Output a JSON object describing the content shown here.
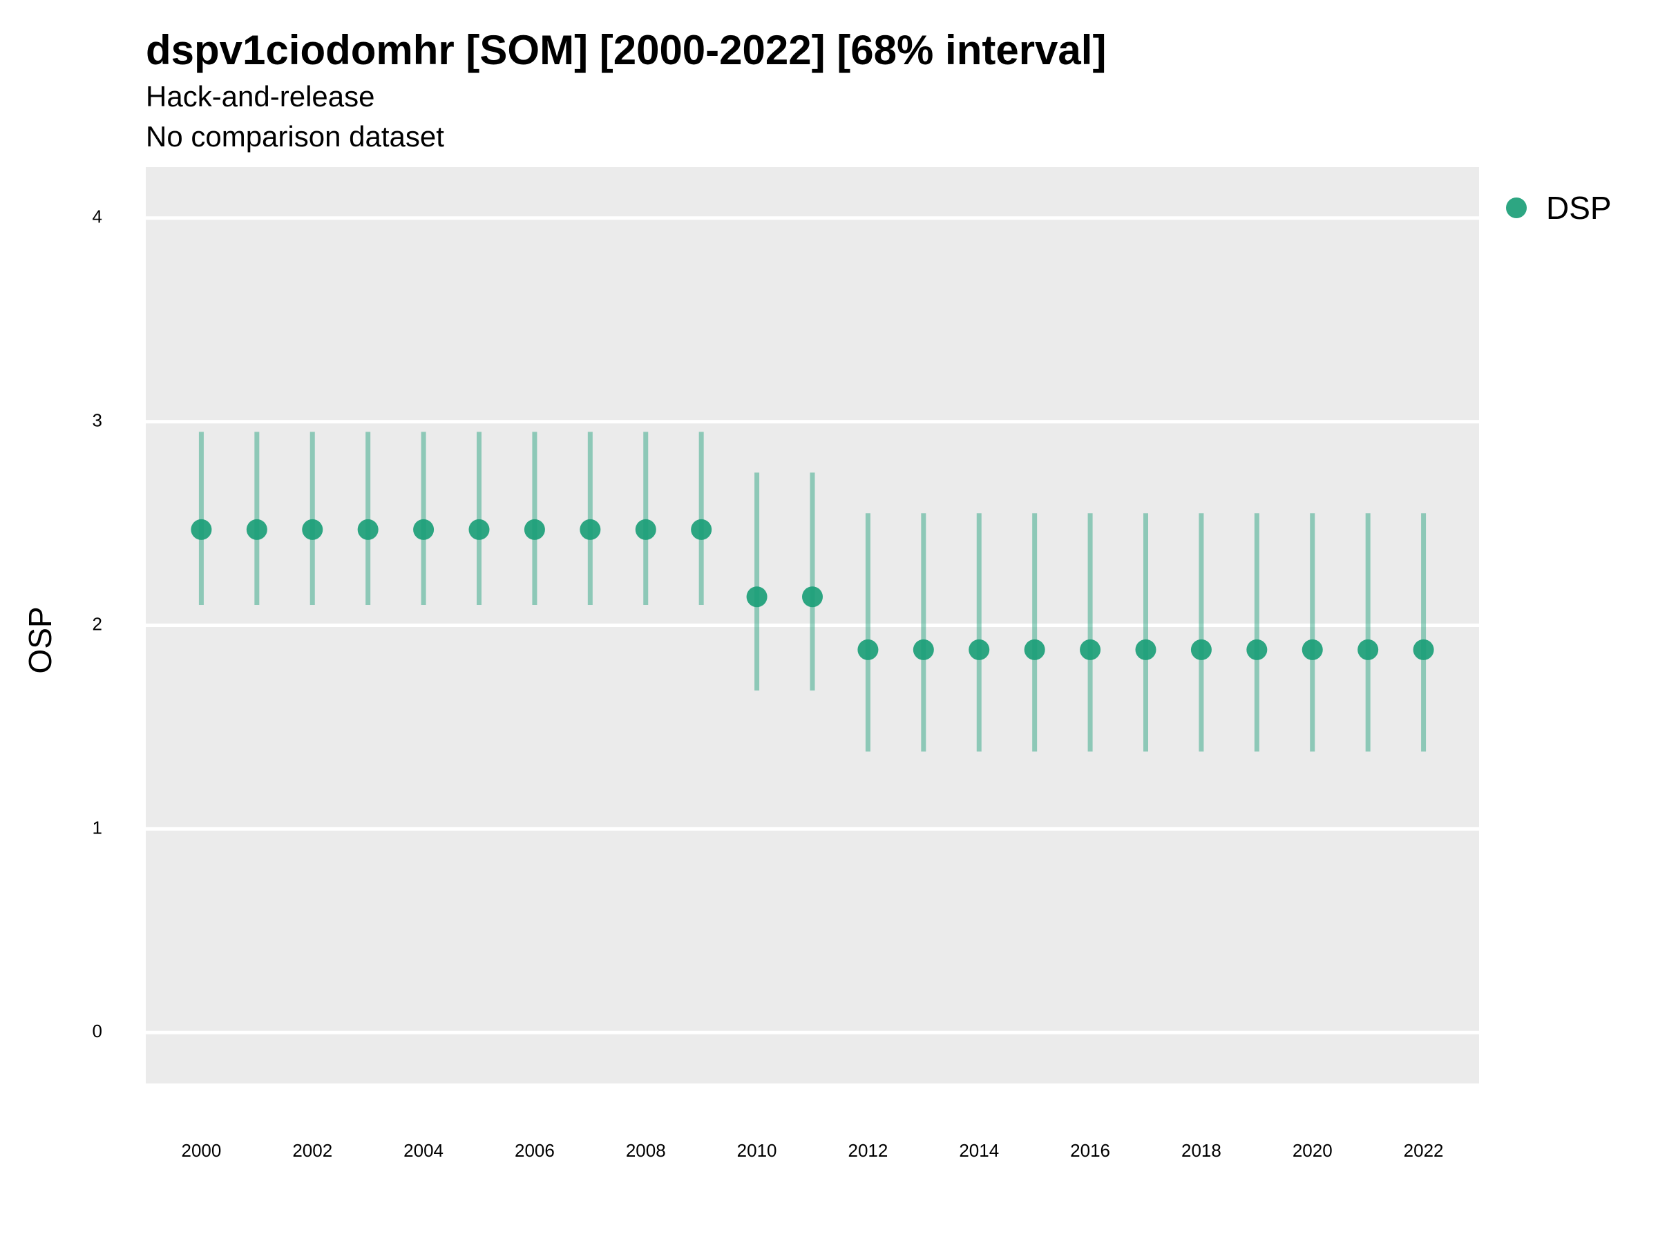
{
  "chart_data": {
    "type": "scatter",
    "title": "dspv1ciodomhr [SOM] [2000-2022] [68% interval]",
    "subtitle": [
      "Hack-and-release",
      "No comparison dataset"
    ],
    "xlabel": "",
    "ylabel": "OSP",
    "xlim": [
      1999,
      2023
    ],
    "ylim": [
      -0.25,
      4.25
    ],
    "x_ticks": [
      2000,
      2002,
      2004,
      2006,
      2008,
      2010,
      2012,
      2014,
      2016,
      2018,
      2020,
      2022
    ],
    "y_ticks": [
      0,
      1,
      2,
      3,
      4
    ],
    "grid": true,
    "legend": "right",
    "series": [
      {
        "name": "DSP",
        "color": "#1b9e77",
        "x": [
          2000,
          2001,
          2002,
          2003,
          2004,
          2005,
          2006,
          2007,
          2008,
          2009,
          2010,
          2011,
          2012,
          2013,
          2014,
          2015,
          2016,
          2017,
          2018,
          2019,
          2020,
          2021,
          2022
        ],
        "y": [
          2.47,
          2.47,
          2.47,
          2.47,
          2.47,
          2.47,
          2.47,
          2.47,
          2.47,
          2.47,
          2.14,
          2.14,
          1.88,
          1.88,
          1.88,
          1.88,
          1.88,
          1.88,
          1.88,
          1.88,
          1.88,
          1.88,
          1.88
        ],
        "lower": [
          2.1,
          2.1,
          2.1,
          2.1,
          2.1,
          2.1,
          2.1,
          2.1,
          2.1,
          2.1,
          1.68,
          1.68,
          1.38,
          1.38,
          1.38,
          1.38,
          1.38,
          1.38,
          1.38,
          1.38,
          1.38,
          1.38,
          1.38
        ],
        "upper": [
          2.95,
          2.95,
          2.95,
          2.95,
          2.95,
          2.95,
          2.95,
          2.95,
          2.95,
          2.95,
          2.75,
          2.75,
          2.55,
          2.55,
          2.55,
          2.55,
          2.55,
          2.55,
          2.55,
          2.55,
          2.55,
          2.55,
          2.55
        ]
      }
    ]
  }
}
